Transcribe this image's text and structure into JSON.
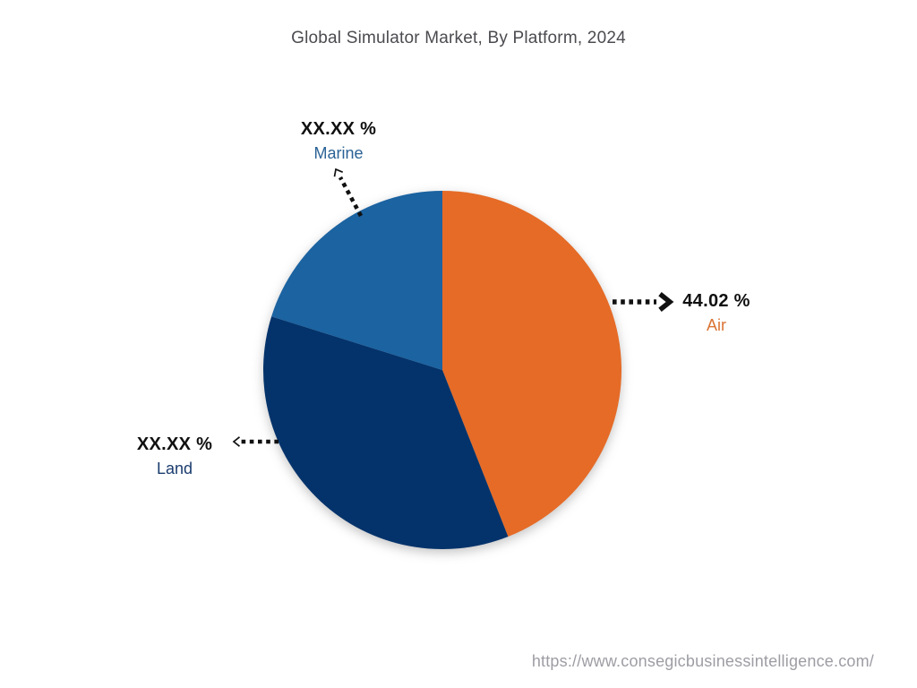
{
  "title": "Global Simulator Market, By Platform, 2024",
  "footer": {
    "url": "https://www.consegicbusinessintelligence.com/"
  },
  "chart_data": {
    "type": "pie",
    "title": "Global Simulator Market, By Platform, 2024",
    "start_angle_deg": 0,
    "direction": "clockwise",
    "legend_position": "none",
    "slices": [
      {
        "name": "Air",
        "value": 44.02,
        "display_value": "44.02 %",
        "color": "#E56B27",
        "label_color": "#DA7434"
      },
      {
        "name": "Land",
        "value": 35.81,
        "display_value": "XX.XX %",
        "color": "#04336B",
        "label_color": "#1A3C6E"
      },
      {
        "name": "Marine",
        "value": 20.17,
        "display_value": "XX.XX %",
        "color": "#1B63A1",
        "label_color": "#2B6295"
      }
    ]
  }
}
